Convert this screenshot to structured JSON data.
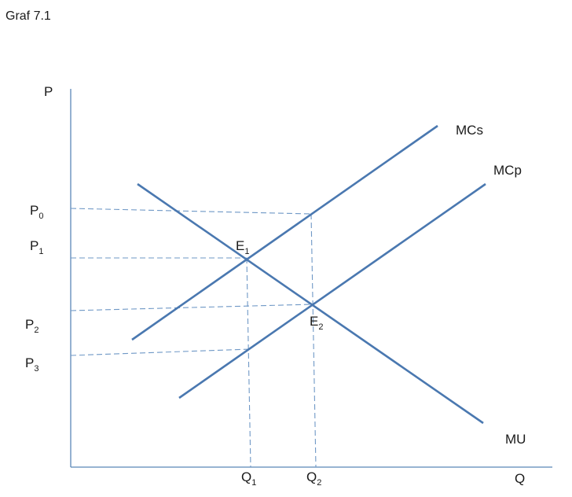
{
  "title": "Graf 7.1",
  "axes": {
    "y_label": "P",
    "x_label": "Q"
  },
  "curves": {
    "mcs": "MCs",
    "mcp": "MCp",
    "mu": "MU"
  },
  "price_labels": [
    {
      "base": "P",
      "sub": "0"
    },
    {
      "base": "P",
      "sub": "1"
    },
    {
      "base": "P",
      "sub": "2"
    },
    {
      "base": "P",
      "sub": "3"
    }
  ],
  "quantity_labels": [
    {
      "base": "Q",
      "sub": "1"
    },
    {
      "base": "Q",
      "sub": "2"
    }
  ],
  "equilibrium_labels": [
    {
      "base": "E",
      "sub": "1"
    },
    {
      "base": "E",
      "sub": "2"
    }
  ],
  "colors": {
    "curve": "#4a78b0",
    "axis": "#5b87b8",
    "guide": "#6f98c6",
    "text": "#1a1a1a"
  }
}
